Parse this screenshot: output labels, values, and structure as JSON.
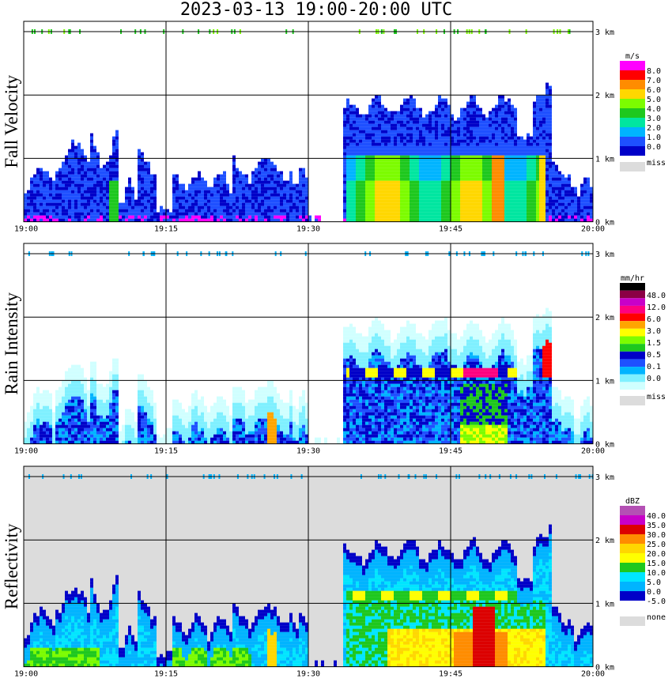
{
  "title": "2023-03-13  19:00-20:00 UTC",
  "chart_data": [
    {
      "type": "heatmap",
      "panel": "Fall Velocity",
      "ylabel": "Fall Velocity",
      "x_ticks": [
        "19:00",
        "19:15",
        "19:30",
        "19:45",
        "20:00"
      ],
      "y_ticks": [
        "0 km",
        "1 km",
        "2 km",
        "3 km"
      ],
      "xlim_minutes": [
        0,
        60
      ],
      "ylim_km": [
        0,
        3
      ],
      "grid": true,
      "background": "#ffffff",
      "colorbar": {
        "unit": "m/s",
        "labels": [
          "8.0",
          "7.0",
          "6.0",
          "5.0",
          "4.0",
          "3.0",
          "2.0",
          "1.0",
          "0.0"
        ],
        "colors": [
          "#ff00ff",
          "#ff0000",
          "#ff8c00",
          "#ffd700",
          "#7cfc00",
          "#1ec81e",
          "#00e6a0",
          "#00b4ff",
          "#1e50ff",
          "#0000c8"
        ],
        "missing_label": "miss"
      }
    },
    {
      "type": "heatmap",
      "panel": "Rain Intensity",
      "ylabel": "Rain Intensity",
      "x_ticks": [
        "19:00",
        "19:15",
        "19:30",
        "19:45",
        "20:00"
      ],
      "y_ticks": [
        "0 km",
        "1 km",
        "2 km",
        "3 km"
      ],
      "xlim_minutes": [
        0,
        60
      ],
      "ylim_km": [
        0,
        3
      ],
      "grid": true,
      "background": "#ffffff",
      "colorbar": {
        "unit": "mm/hr",
        "labels": [
          "48.0",
          "12.0",
          "6.0",
          "3.0",
          "1.5",
          "0.5",
          "0.1",
          "0.0"
        ],
        "colors": [
          "#000000",
          "#8b0045",
          "#c800c8",
          "#ff0080",
          "#ff0000",
          "#ffa500",
          "#ffff00",
          "#7cfc00",
          "#1ec81e",
          "#0000c8",
          "#1e50ff",
          "#00b4ff",
          "#7ff0ff",
          "#d0ffff"
        ],
        "missing_label": "miss"
      }
    },
    {
      "type": "heatmap",
      "panel": "Reflectivity",
      "ylabel": "Reflectivity",
      "x_ticks": [
        "19:00",
        "19:15",
        "19:30",
        "19:45",
        "20:00"
      ],
      "y_ticks": [
        "0 km",
        "1 km",
        "2 km",
        "3 km"
      ],
      "xlim_minutes": [
        0,
        60
      ],
      "ylim_km": [
        0,
        3
      ],
      "grid": true,
      "background": "#dcdcdc",
      "colorbar": {
        "unit": "dBZ",
        "labels": [
          "40.0",
          "35.0",
          "30.0",
          "25.0",
          "20.0",
          "15.0",
          "10.0",
          "5.0",
          "0.0",
          "-5.0"
        ],
        "colors": [
          "#b450b4",
          "#c800c8",
          "#dc0000",
          "#ff8c00",
          "#ffd700",
          "#ffff00",
          "#1ec81e",
          "#00e6ff",
          "#00b4ff",
          "#0000c8",
          "#ffffff"
        ],
        "missing_label": "none"
      }
    }
  ]
}
